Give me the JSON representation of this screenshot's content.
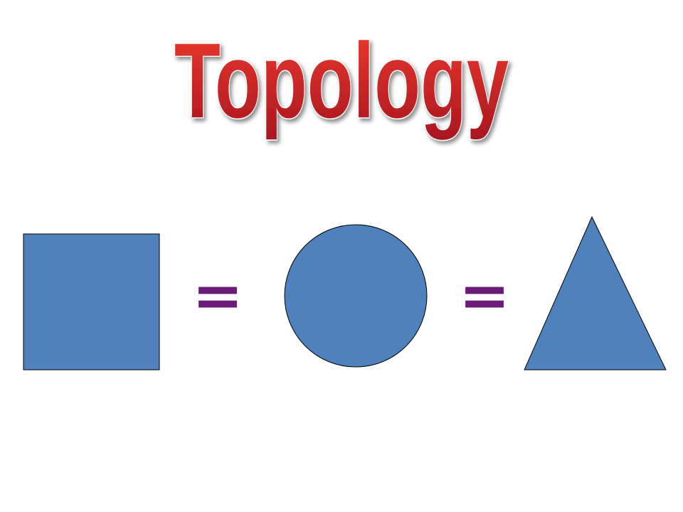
{
  "slide": {
    "title": "Topology",
    "equals_sign": "=",
    "shapes": [
      {
        "kind": "square",
        "icon": "square-shape"
      },
      {
        "kind": "circle",
        "icon": "circle-shape"
      },
      {
        "kind": "triangle",
        "icon": "triangle-shape"
      }
    ]
  },
  "colors": {
    "shape_fill": "#4f81bd",
    "shape_stroke": "#000000",
    "equals_color": "#6b1a7a",
    "title_top": "#ee3b2f",
    "title_bottom": "#a81620",
    "title_outline": "#ffffff"
  }
}
